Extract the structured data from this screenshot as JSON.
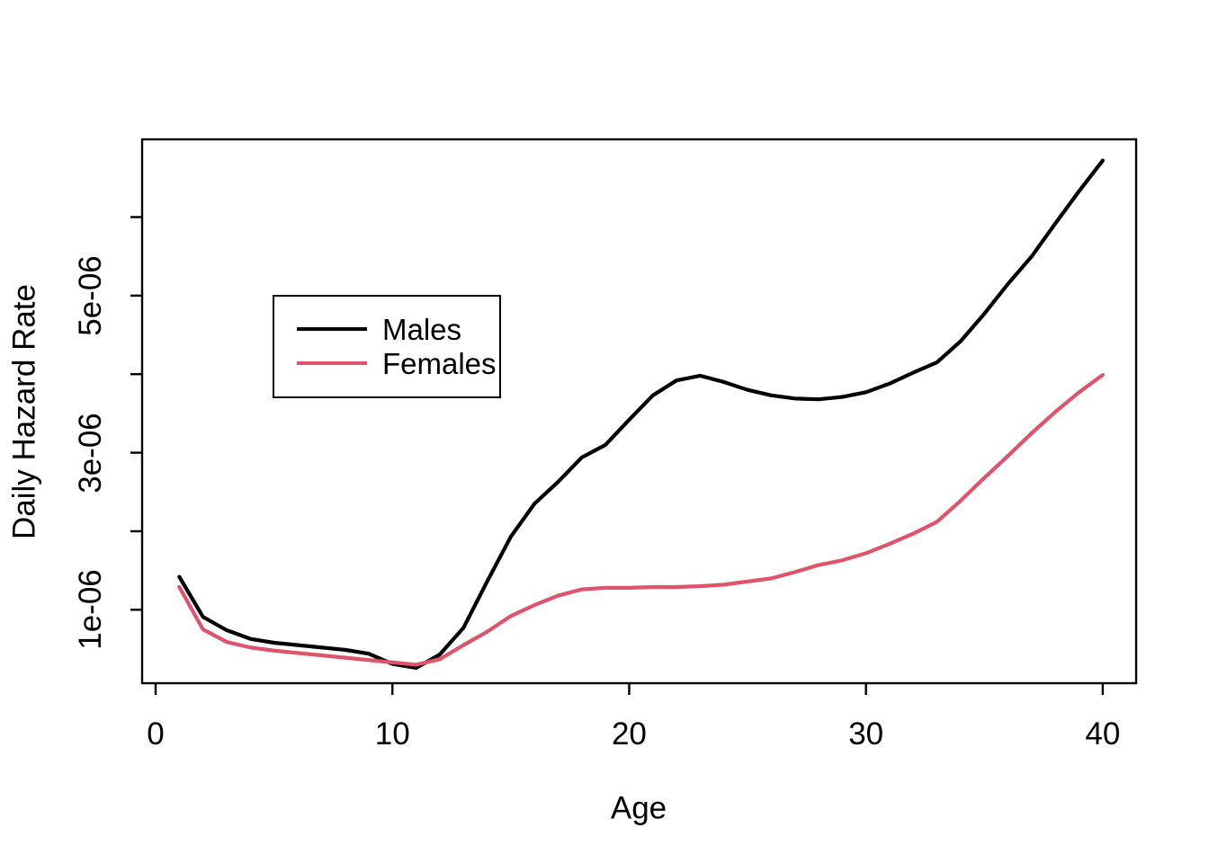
{
  "chart_data": {
    "type": "line",
    "title": "",
    "xlabel": "Age",
    "ylabel": "Daily Hazard Rate",
    "grid": false,
    "xlim": [
      -0.57,
      41.41
    ],
    "ylim": [
      6.5e-08,
      6.99e-06
    ],
    "x": [
      1,
      2,
      3,
      4,
      5,
      6,
      7,
      8,
      9,
      10,
      11,
      12,
      13,
      14,
      15,
      16,
      17,
      18,
      19,
      20,
      21,
      22,
      23,
      24,
      25,
      26,
      27,
      28,
      29,
      30,
      31,
      32,
      33,
      34,
      35,
      36,
      37,
      38,
      39,
      40
    ],
    "series": [
      {
        "name": "Males",
        "color": "#000000",
        "values": [
          1.42e-06,
          9.1e-07,
          7.4e-07,
          6.3e-07,
          5.8e-07,
          5.5e-07,
          5.2e-07,
          4.9e-07,
          4.4e-07,
          3.1e-07,
          2.6e-07,
          4.3e-07,
          7.7e-07,
          1.36e-06,
          1.93e-06,
          2.35e-06,
          2.63e-06,
          2.94e-06,
          3.1e-06,
          3.42e-06,
          3.73e-06,
          3.92e-06,
          3.98e-06,
          3.9e-06,
          3.8e-06,
          3.73e-06,
          3.69e-06,
          3.68e-06,
          3.71e-06,
          3.77e-06,
          3.88e-06,
          4.02e-06,
          4.15e-06,
          4.42e-06,
          4.77e-06,
          5.15e-06,
          5.5e-06,
          5.92e-06,
          6.33e-06,
          6.72e-06
        ]
      },
      {
        "name": "Females",
        "color": "#DF536B",
        "values": [
          1.29e-06,
          7.5e-07,
          5.9e-07,
          5.2e-07,
          4.8e-07,
          4.5e-07,
          4.2e-07,
          3.9e-07,
          3.6e-07,
          3.3e-07,
          3e-07,
          3.7e-07,
          5.5e-07,
          7.2e-07,
          9.2e-07,
          1.06e-06,
          1.18e-06,
          1.26e-06,
          1.28e-06,
          1.28e-06,
          1.29e-06,
          1.29e-06,
          1.3e-06,
          1.32e-06,
          1.36e-06,
          1.4e-06,
          1.48e-06,
          1.57e-06,
          1.63e-06,
          1.72e-06,
          1.84e-06,
          1.97e-06,
          2.12e-06,
          2.39e-06,
          2.68e-06,
          2.96e-06,
          3.25e-06,
          3.52e-06,
          3.77e-06,
          3.99e-06
        ]
      }
    ],
    "x_ticks": [
      {
        "value": 0,
        "label": "0"
      },
      {
        "value": 10,
        "label": "10"
      },
      {
        "value": 20,
        "label": "20"
      },
      {
        "value": 30,
        "label": "30"
      },
      {
        "value": 40,
        "label": "40"
      }
    ],
    "y_ticks": [
      {
        "value": 1e-06,
        "label": "1e-06"
      },
      {
        "value": 2e-06,
        "label": ""
      },
      {
        "value": 3e-06,
        "label": "3e-06"
      },
      {
        "value": 4e-06,
        "label": ""
      },
      {
        "value": 5e-06,
        "label": "5e-06"
      },
      {
        "value": 6e-06,
        "label": ""
      }
    ],
    "legend": {
      "position": "inside-top-left",
      "entries": [
        "Males",
        "Females"
      ]
    }
  }
}
